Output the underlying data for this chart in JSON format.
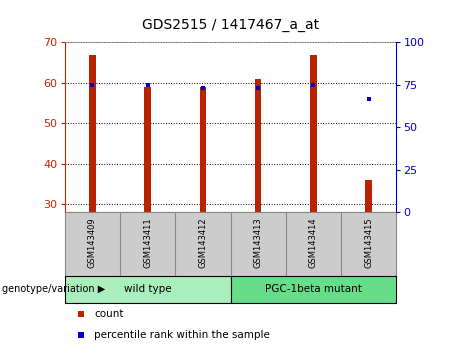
{
  "title": "GDS2515 / 1417467_a_at",
  "samples": [
    "GSM143409",
    "GSM143411",
    "GSM143412",
    "GSM143413",
    "GSM143414",
    "GSM143415"
  ],
  "counts": [
    67,
    59,
    59,
    61,
    67,
    36
  ],
  "percentile_ranks": [
    75,
    75,
    73,
    73,
    75,
    67
  ],
  "ylim_left": [
    28,
    70
  ],
  "ylim_right": [
    0,
    100
  ],
  "yticks_left": [
    30,
    40,
    50,
    60,
    70
  ],
  "yticks_right": [
    0,
    25,
    50,
    75,
    100
  ],
  "bar_color": "#bb2200",
  "dot_color": "#0000cc",
  "bar_bottom": 28,
  "bar_width": 0.12,
  "groups": [
    {
      "label": "wild type",
      "indices": [
        0,
        1,
        2
      ],
      "color": "#aaeebb"
    },
    {
      "label": "PGC-1beta mutant",
      "indices": [
        3,
        4,
        5
      ],
      "color": "#66dd88"
    }
  ],
  "group_label": "genotype/variation",
  "legend_items": [
    {
      "label": "count",
      "color": "#bb2200"
    },
    {
      "label": "percentile rank within the sample",
      "color": "#0000cc"
    }
  ],
  "background_color": "#ffffff",
  "plot_bg": "#ffffff",
  "title_fontsize": 10,
  "tick_fontsize": 8,
  "axis_color_left": "#cc2200",
  "axis_color_right": "#0000cc",
  "sample_label_bg": "#cccccc",
  "spine_color": "#888888"
}
